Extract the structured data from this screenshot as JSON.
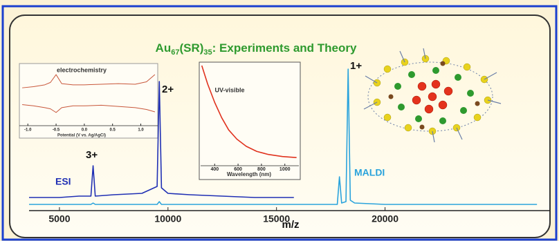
{
  "chart_data": [
    {
      "type": "line",
      "title_parts": [
        "Au",
        "67",
        "(SR)",
        "35",
        ": Experiments and Theory"
      ],
      "xlabel": "m/z",
      "xlim": [
        3600,
        27600
      ],
      "xticks": [
        5000,
        10000,
        15000,
        20000
      ],
      "ylim": [
        0,
        100
      ],
      "x": [
        3600,
        5000,
        5900,
        6450,
        6550,
        6650,
        7500,
        8800,
        9500,
        9600,
        9700,
        10000,
        11000,
        12500,
        14000,
        15800,
        17000,
        17800,
        17900,
        18000,
        18200,
        18300,
        18400,
        18600,
        20000,
        23000,
        27000
      ],
      "series": [
        {
          "name": "ESI",
          "color": "#1f2fb4",
          "values": [
            7,
            7,
            8,
            8,
            30,
            8,
            9,
            10,
            15,
            91,
            14,
            10,
            9,
            8,
            7,
            7,
            null,
            null,
            null,
            null,
            null,
            null,
            null,
            null,
            null,
            null,
            null
          ]
        },
        {
          "name": "MALDI",
          "color": "#2aa3dc",
          "values": [
            2,
            2,
            2,
            2,
            3,
            2,
            2,
            2,
            2,
            4,
            2,
            2,
            2,
            2,
            2,
            2,
            2,
            2,
            22,
            3,
            4,
            100,
            5,
            3,
            2,
            2,
            2
          ]
        }
      ],
      "annotations": [
        "3+",
        "2+",
        "1+"
      ]
    },
    {
      "type": "line",
      "title": "electrochemistry",
      "xlabel": "Potential (V vs. Ag/AgCl)",
      "xlim": [
        -1.15,
        1.3
      ],
      "xticks": [
        {
          "value": -1,
          "label": "-1.0"
        },
        {
          "value": -0.5,
          "label": "-0.5"
        },
        {
          "value": 0,
          "label": "0.0"
        },
        {
          "value": 0.5,
          "label": "0.5"
        },
        {
          "value": 1,
          "label": "1.0"
        }
      ],
      "ylim": [
        0,
        10
      ],
      "x": [
        -1.1,
        -0.9,
        -0.7,
        -0.6,
        -0.5,
        -0.4,
        -0.2,
        0,
        0.3,
        0.6,
        0.9,
        1.1,
        1.25
      ],
      "series": [
        {
          "color": "#c8563a",
          "values": [
            6.3,
            6.5,
            6.8,
            7.2,
            8.5,
            7.0,
            6.8,
            6.8,
            6.9,
            7.0,
            6.9,
            7.3,
            8.5
          ]
        },
        {
          "color": "#c8563a",
          "values": [
            3.5,
            3.3,
            3.0,
            2.8,
            2.2,
            3.0,
            3.3,
            3.3,
            3.4,
            3.2,
            3.0,
            2.7,
            2.3
          ]
        }
      ]
    },
    {
      "type": "line",
      "title": "UV-visible",
      "xlabel": "Wavelength (nm)",
      "xlim": [
        280,
        1120
      ],
      "xticks": [
        400,
        600,
        800,
        1000
      ],
      "ylim": [
        0,
        1
      ],
      "x": [
        290,
        340,
        400,
        460,
        520,
        590,
        670,
        760,
        860,
        980,
        1100
      ],
      "series": [
        {
          "color": "#e0321e",
          "values": [
            0.98,
            0.8,
            0.62,
            0.47,
            0.35,
            0.26,
            0.19,
            0.14,
            0.11,
            0.09,
            0.08
          ]
        }
      ]
    }
  ]
}
